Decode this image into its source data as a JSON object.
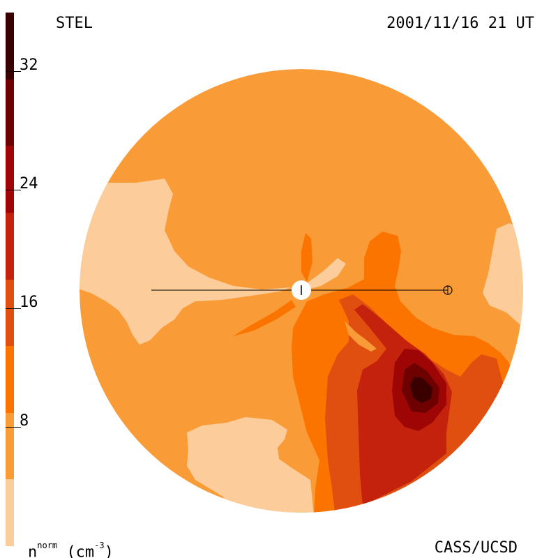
{
  "header": {
    "instrument": "STEL",
    "timestamp": "2001/11/16 21 UT"
  },
  "footer": {
    "credit": "CASS/UCSD",
    "unit_symbol": "n",
    "unit_superscript": "norm",
    "unit_text": " (cm",
    "unit_exponent": "-3",
    "unit_close": ")"
  },
  "colorbar": {
    "ticks": [
      "8",
      "16",
      "24",
      "32"
    ],
    "colors": [
      "#fccd9a",
      "#f99c38",
      "#fc7400",
      "#e04f10",
      "#c5220e",
      "#9e0606",
      "#6e0000",
      "#3a0000"
    ]
  },
  "colors": {
    "level_0": "#fccd9a",
    "level_1": "#f99c38",
    "level_2": "#fc7400",
    "level_3": "#e04f10",
    "level_4": "#c5220e",
    "level_5": "#9e0606",
    "level_6": "#6e0000",
    "level_7": "#3a0000"
  }
}
